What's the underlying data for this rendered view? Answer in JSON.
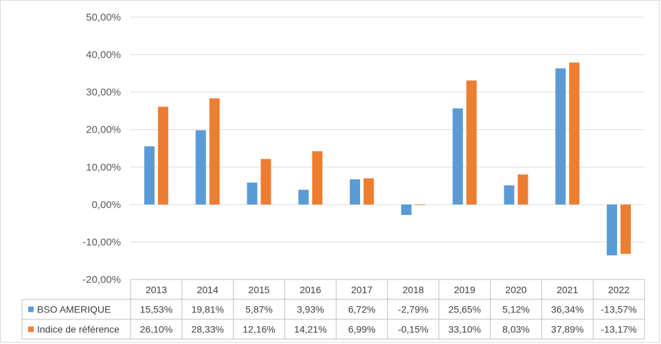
{
  "chart_data": {
    "type": "bar",
    "categories": [
      "2013",
      "2014",
      "2015",
      "2016",
      "2017",
      "2018",
      "2019",
      "2020",
      "2021",
      "2022"
    ],
    "series": [
      {
        "name": "BSO AMERIQUE",
        "color": "#5b9bd5",
        "values": [
          15.53,
          19.81,
          5.87,
          3.93,
          6.72,
          -2.79,
          25.65,
          5.12,
          36.34,
          -13.57
        ],
        "labels": [
          "15,53%",
          "19,81%",
          "5,87%",
          "3,93%",
          "6,72%",
          "-2,79%",
          "25,65%",
          "5,12%",
          "36,34%",
          "-13,57%"
        ]
      },
      {
        "name": "Indice de référence",
        "color": "#ed7d31",
        "values": [
          26.1,
          28.33,
          12.16,
          14.21,
          6.99,
          -0.15,
          33.1,
          8.03,
          37.89,
          -13.17
        ],
        "labels": [
          "26,10%",
          "28,33%",
          "12,16%",
          "14,21%",
          "6,99%",
          "-0,15%",
          "33,10%",
          "8,03%",
          "37,89%",
          "-13,17%"
        ]
      }
    ],
    "ylim": [
      -20,
      50
    ],
    "yticks": [
      50,
      40,
      30,
      20,
      10,
      0,
      -10,
      -20
    ],
    "ytick_labels": [
      "50,00%",
      "40,00%",
      "30,00%",
      "20,00%",
      "10,00%",
      "0,00%",
      "-10,00%",
      "-20,00%"
    ],
    "grid": true,
    "legend": "data-table"
  }
}
